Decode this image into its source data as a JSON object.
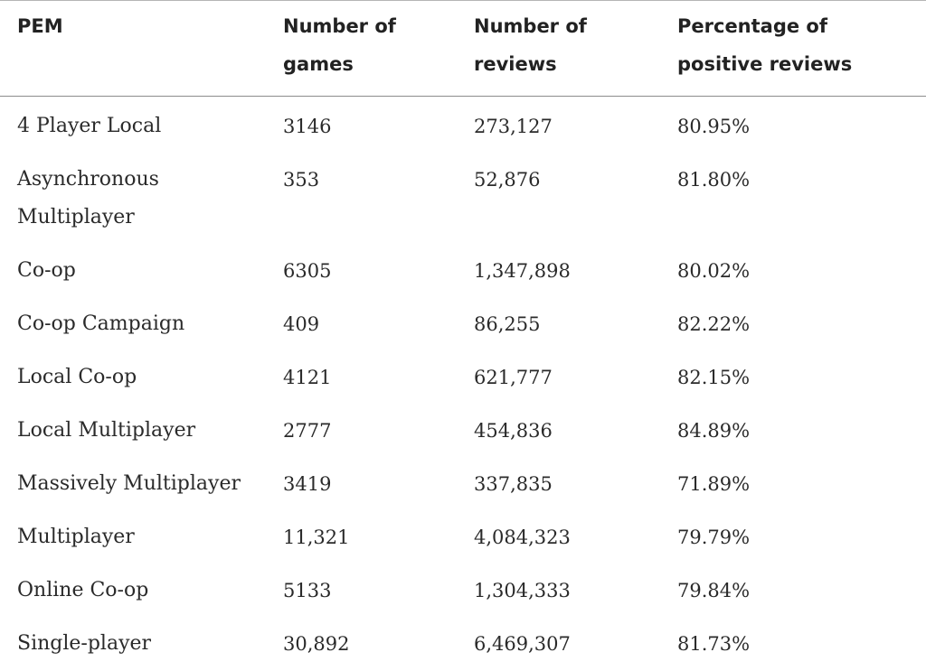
{
  "table": {
    "headers": [
      "PEM",
      "Number of games",
      "Number of reviews",
      "Percentage of positive reviews"
    ],
    "rows": [
      [
        "4 Player Local",
        "3146",
        "273,127",
        "80.95%"
      ],
      [
        "Asynchronous Multiplayer",
        "353",
        "52,876",
        "81.80%"
      ],
      [
        "Co-op",
        "6305",
        "1,347,898",
        "80.02%"
      ],
      [
        "Co-op Campaign",
        "409",
        "86,255",
        "82.22%"
      ],
      [
        "Local Co-op",
        "4121",
        "621,777",
        "82.15%"
      ],
      [
        "Local Multiplayer",
        "2777",
        "454,836",
        "84.89%"
      ],
      [
        "Massively Multiplayer",
        "3419",
        "337,835",
        "71.89%"
      ],
      [
        "Multiplayer",
        "11,321",
        "4,084,323",
        "79.79%"
      ],
      [
        "Online Co-op",
        "5133",
        "1,304,333",
        "79.84%"
      ],
      [
        "Single-player",
        "30,892",
        "6,469,307",
        "81.73%"
      ]
    ]
  }
}
